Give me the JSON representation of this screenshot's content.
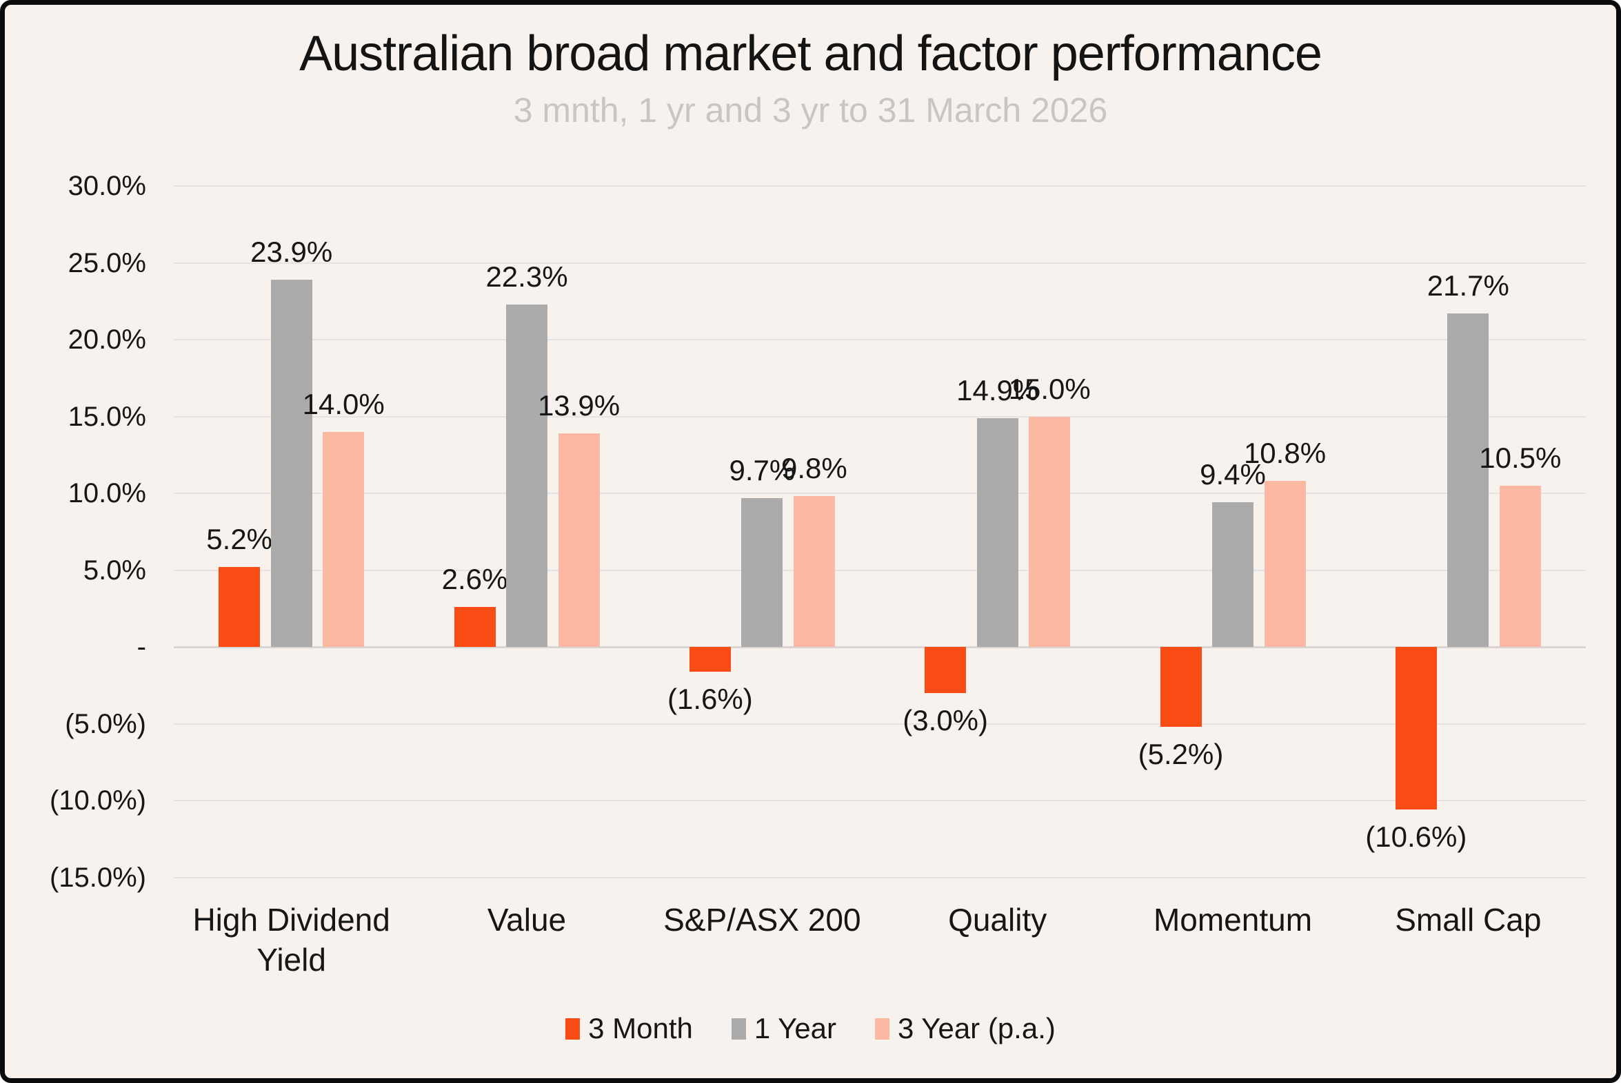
{
  "title": "Australian broad market and factor performance",
  "subtitle": "3 mnth, 1 yr and 3 yr to 31 March 2026",
  "colors": {
    "background": "#F7F2EE",
    "border": "#0B0B0B",
    "orange": "#F94B14",
    "gray": "#ABABAB",
    "salmon": "#FBB9A4",
    "gridline": "#E6E3E0",
    "zero_line": "#D8D5D2",
    "subtitle_text": "#C9C6C2",
    "text": "#161616"
  },
  "chart_data": {
    "type": "bar",
    "title": "Australian broad market and factor performance",
    "subtitle": "3 mnth, 1 yr and 3 yr to 31 March 2026",
    "categories": [
      "High Dividend Yield",
      "Value",
      "S&P/ASX 200",
      "Quality",
      "Momentum",
      "Small Cap"
    ],
    "series": [
      {
        "name": "3 Month",
        "color_key": "orange",
        "values": [
          5.2,
          2.6,
          -1.6,
          -3.0,
          -5.2,
          -10.6
        ],
        "labels": [
          "5.2%",
          "2.6%",
          "(1.6%)",
          "(3.0%)",
          "(5.2%)",
          "(10.6%)"
        ]
      },
      {
        "name": "1 Year",
        "color_key": "gray",
        "values": [
          23.9,
          22.3,
          9.7,
          14.9,
          9.4,
          21.7
        ],
        "labels": [
          "23.9%",
          "22.3%",
          "9.7%",
          "14.9%",
          "9.4%",
          "21.7%"
        ]
      },
      {
        "name": "3 Year (p.a.)",
        "color_key": "salmon",
        "values": [
          14.0,
          13.9,
          9.8,
          15.0,
          10.8,
          10.5
        ],
        "labels": [
          "14.0%",
          "13.9%",
          "9.8%",
          "15.0%",
          "10.8%",
          "10.5%"
        ]
      }
    ],
    "y_axis": {
      "min": -15,
      "max": 30,
      "ticks": [
        30,
        25,
        20,
        15,
        10,
        5,
        0,
        -5,
        -10,
        -15
      ],
      "tick_labels": [
        "30.0%",
        "25.0%",
        "20.0%",
        "15.0%",
        "10.0%",
        "5.0%",
        "-",
        "(5.0%)",
        "(10.0%)",
        "(15.0%)"
      ]
    },
    "grid": true,
    "legend_position": "bottom",
    "legend": [
      {
        "label": "3 Month",
        "color_key": "orange"
      },
      {
        "label": "1 Year",
        "color_key": "gray"
      },
      {
        "label": "3 Year (p.a.)",
        "color_key": "salmon"
      }
    ]
  }
}
